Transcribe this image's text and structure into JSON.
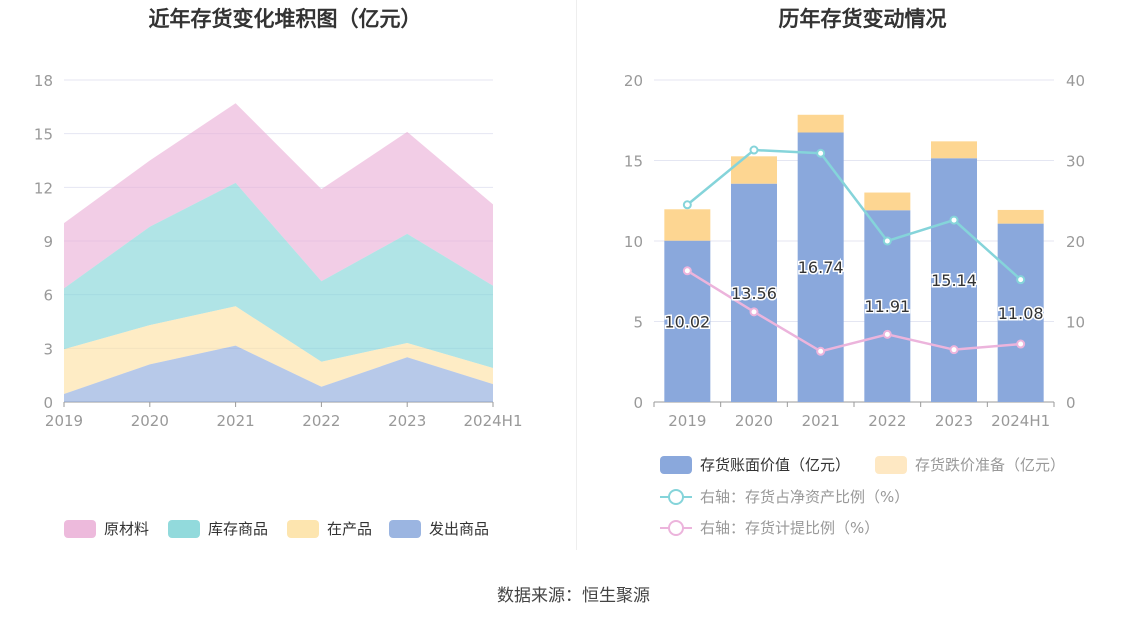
{
  "colors": {
    "raw": "#eaaed6",
    "stock": "#7fd3d6",
    "wip": "#fde0a1",
    "shipped": "#8aa8dc",
    "bar": "#8aa8dc",
    "reserve": "#fdd692",
    "line_net": "#85d4da",
    "line_prov": "#ecb4dc",
    "axis": "#999999",
    "grid": "#e4e6f2",
    "label": "#666666"
  },
  "source_text": "数据来源：恒生聚源",
  "chart_data": [
    {
      "type": "area",
      "stacked": true,
      "title": "近年存货变化堆积图（亿元）",
      "categories": [
        "2019",
        "2020",
        "2021",
        "2022",
        "2023",
        "2024H1"
      ],
      "ylim": [
        0,
        18
      ],
      "yticks": [
        "0",
        "3",
        "6",
        "9",
        "12",
        "15",
        "18"
      ],
      "grid": true,
      "legend_position": "bottom",
      "series": [
        {
          "name": "发出商品",
          "color_key": "shipped",
          "values": [
            0.45,
            2.1,
            3.15,
            0.85,
            2.5,
            1.0
          ]
        },
        {
          "name": "在产品",
          "color_key": "wip",
          "values": [
            2.5,
            2.2,
            2.2,
            1.4,
            0.8,
            0.9
          ]
        },
        {
          "name": "库存商品",
          "color_key": "stock",
          "values": [
            3.4,
            5.5,
            6.9,
            4.5,
            6.1,
            4.6
          ]
        },
        {
          "name": "原材料",
          "color_key": "raw",
          "values": [
            3.65,
            3.7,
            4.45,
            5.15,
            5.7,
            4.55
          ]
        }
      ],
      "legend_order": [
        "原材料",
        "库存商品",
        "在产品",
        "发出商品"
      ]
    },
    {
      "type": "bar",
      "stacked": true,
      "title": "历年存货变动情况",
      "categories": [
        "2019",
        "2020",
        "2021",
        "2022",
        "2023",
        "2024H1"
      ],
      "ylim": [
        0,
        20
      ],
      "yticks": [
        "0",
        "5",
        "10",
        "15",
        "20"
      ],
      "y2lim": [
        0,
        40
      ],
      "y2ticks": [
        "0",
        "10",
        "20",
        "30",
        "40"
      ],
      "grid": true,
      "legend_position": "bottom",
      "series": [
        {
          "name": "存货账面价值（亿元）",
          "kind": "bar",
          "color_key": "bar",
          "values": [
            10.02,
            13.56,
            16.74,
            11.91,
            15.14,
            11.08
          ],
          "labels": [
            "10.02",
            "13.56",
            "16.74",
            "11.91",
            "15.14",
            "11.08"
          ]
        },
        {
          "name": "存货跌价准备（亿元）",
          "kind": "bar",
          "color_key": "reserve",
          "values": [
            1.95,
            1.7,
            1.1,
            1.1,
            1.05,
            0.85
          ]
        },
        {
          "name": "右轴：存货占净资产比例（%）",
          "kind": "line",
          "axis": "right",
          "color_key": "line_net",
          "values": [
            24.5,
            31.3,
            30.9,
            20.0,
            22.6,
            15.2
          ]
        },
        {
          "name": "右轴：存货计提比例（%）",
          "kind": "line",
          "axis": "right",
          "color_key": "line_prov",
          "values": [
            16.3,
            11.2,
            6.3,
            8.4,
            6.5,
            7.2
          ]
        }
      ]
    }
  ]
}
